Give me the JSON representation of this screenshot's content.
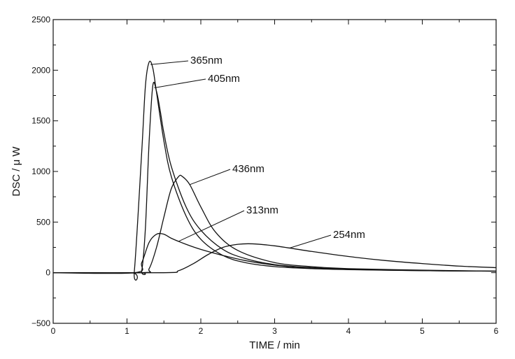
{
  "chart_data": {
    "type": "line",
    "title": "",
    "xlabel": "TIME  / min",
    "ylabel": "DSC  /  μ W",
    "xlim": [
      0,
      6
    ],
    "ylim": [
      -500,
      2500
    ],
    "xticks": [
      "0",
      "1",
      "2",
      "3",
      "4",
      "5",
      "6"
    ],
    "yticks": [
      "2500",
      "2000",
      "1500",
      "1000",
      "500",
      "0",
      "−500"
    ],
    "grid": false,
    "legend": "none",
    "series": [
      {
        "name": "365nm",
        "x": [
          0,
          1.05,
          1.1,
          1.2,
          1.25,
          1.3,
          1.35,
          1.4,
          1.5,
          1.6,
          1.8,
          2.0,
          2.3,
          2.6,
          3.0,
          3.5,
          4.0,
          5.0,
          6.0
        ],
        "y": [
          0,
          0,
          20,
          1200,
          1850,
          2080,
          2020,
          1780,
          1300,
          950,
          560,
          330,
          170,
          100,
          60,
          40,
          30,
          20,
          15
        ]
      },
      {
        "name": "405nm",
        "x": [
          0,
          1.15,
          1.2,
          1.25,
          1.3,
          1.35,
          1.4,
          1.45,
          1.5,
          1.6,
          1.8,
          2.0,
          2.3,
          2.6,
          3.0,
          3.5,
          4.0,
          5.0,
          6.0
        ],
        "y": [
          0,
          0,
          20,
          450,
          1300,
          1850,
          1790,
          1600,
          1380,
          1050,
          650,
          420,
          230,
          140,
          80,
          50,
          35,
          22,
          15
        ]
      },
      {
        "name": "436nm",
        "x": [
          0,
          1.2,
          1.3,
          1.4,
          1.5,
          1.6,
          1.7,
          1.75,
          1.85,
          2.0,
          2.2,
          2.5,
          3.0,
          3.5,
          4.0,
          5.0,
          6.0
        ],
        "y": [
          0,
          0,
          40,
          250,
          550,
          830,
          950,
          950,
          870,
          650,
          400,
          220,
          100,
          60,
          40,
          25,
          15
        ]
      },
      {
        "name": "313nm",
        "x": [
          0,
          1.1,
          1.2,
          1.3,
          1.4,
          1.5,
          1.6,
          1.8,
          2.0,
          2.3,
          2.6,
          3.0,
          3.5,
          4.0,
          5.0,
          6.0
        ],
        "y": [
          0,
          0,
          100,
          300,
          380,
          380,
          340,
          280,
          230,
          170,
          120,
          75,
          45,
          32,
          20,
          15
        ]
      },
      {
        "name": "254nm",
        "x": [
          0,
          1.5,
          1.7,
          1.9,
          2.1,
          2.3,
          2.5,
          2.7,
          3.0,
          3.5,
          4.0,
          4.5,
          5.0,
          5.5,
          6.0
        ],
        "y": [
          0,
          0,
          20,
          90,
          180,
          250,
          280,
          285,
          265,
          210,
          160,
          120,
          90,
          65,
          50
        ]
      }
    ],
    "annotations": [
      {
        "text": "365nm",
        "series": "365nm",
        "at_x": 1.32
      },
      {
        "text": "405nm",
        "series": "405nm",
        "at_x": 1.37
      },
      {
        "text": "436nm",
        "series": "436nm",
        "at_x": 1.85
      },
      {
        "text": "313nm",
        "series": "313nm",
        "at_x": 1.7
      },
      {
        "text": "254nm",
        "series": "254nm",
        "at_x": 3.2
      }
    ]
  }
}
